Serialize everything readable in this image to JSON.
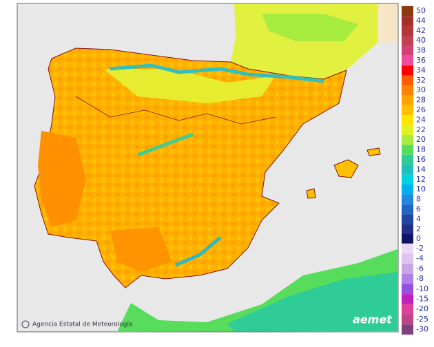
{
  "legend": {
    "items": [
      {
        "label": "50",
        "color": "#8b3a0f"
      },
      {
        "label": "44",
        "color": "#a03028"
      },
      {
        "label": "42",
        "color": "#b03838"
      },
      {
        "label": "40",
        "color": "#c04050"
      },
      {
        "label": "38",
        "color": "#d24078"
      },
      {
        "label": "36",
        "color": "#ee4c9c"
      },
      {
        "label": "34",
        "color": "#ff0000"
      },
      {
        "label": "32",
        "color": "#ff5a00"
      },
      {
        "label": "30",
        "color": "#ff8400"
      },
      {
        "label": "28",
        "color": "#ffa200"
      },
      {
        "label": "26",
        "color": "#ffc000"
      },
      {
        "label": "24",
        "color": "#ffe400"
      },
      {
        "label": "22",
        "color": "#e0f020"
      },
      {
        "label": "20",
        "color": "#a8ec40"
      },
      {
        "label": "18",
        "color": "#58dc5c"
      },
      {
        "label": "16",
        "color": "#30cc98"
      },
      {
        "label": "14",
        "color": "#20c0b8"
      },
      {
        "label": "12",
        "color": "#00d4e4"
      },
      {
        "label": "10",
        "color": "#00b0f0"
      },
      {
        "label": "8",
        "color": "#2088e0"
      },
      {
        "label": "6",
        "color": "#2064c4"
      },
      {
        "label": "4",
        "color": "#2044a4"
      },
      {
        "label": "2",
        "color": "#203088"
      },
      {
        "label": "0",
        "color": "#101464"
      }
    ],
    "negative_items": [
      {
        "label": "-2",
        "color": "#ead8f4"
      },
      {
        "label": "-4",
        "color": "#dcc4ee"
      },
      {
        "label": "-6",
        "color": "#c8a4e6"
      },
      {
        "label": "-8",
        "color": "#b080e4"
      },
      {
        "label": "-10",
        "color": "#9450e0"
      },
      {
        "label": "-15",
        "color": "#c020c0"
      },
      {
        "label": "-20",
        "color": "#e0409c"
      },
      {
        "label": "-25",
        "color": "#c04484"
      },
      {
        "label": "-30",
        "color": "#804080"
      }
    ]
  },
  "credit": "Agencia Estatal de Meteorología",
  "logo": "aemet"
}
